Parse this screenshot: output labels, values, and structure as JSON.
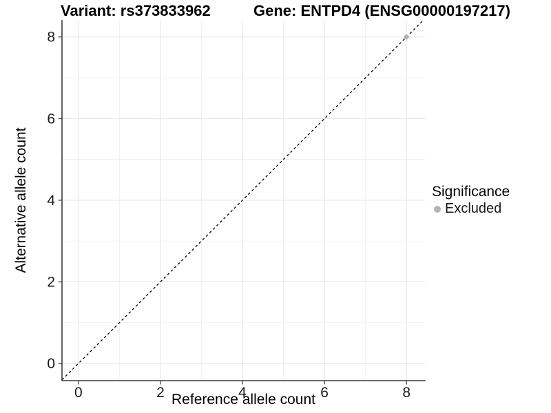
{
  "header": {
    "variant_title": "Variant: rs373833962",
    "gene_title": "Gene: ENTPD4 (ENSG00000197217)"
  },
  "legend": {
    "title": "Significance",
    "items": [
      {
        "label": "Excluded",
        "color": "#b3b3b3"
      }
    ]
  },
  "colors": {
    "grid_major": "#e3e3e3",
    "grid_minor": "#efefef",
    "axis_line": "#3c3c3c",
    "tick_mark": "#333333",
    "tick_label": "#1a1a1a",
    "identity_line": "#000000",
    "point_excluded": "#b3b3b3",
    "background": "#ffffff"
  },
  "chart_data": {
    "type": "scatter",
    "title": "Variant: rs373833962  |  Gene: ENTPD4 (ENSG00000197217)",
    "xlabel": "Reference allele count",
    "ylabel": "Alternative allele count",
    "xlim": [
      -0.4,
      8.45
    ],
    "ylim": [
      -0.42,
      8.4
    ],
    "x_ticks": [
      0,
      2,
      4,
      6,
      8
    ],
    "y_ticks": [
      0,
      2,
      4,
      6,
      8
    ],
    "x_minor_breaks": [
      1,
      3,
      5,
      7
    ],
    "y_minor_breaks": [
      1,
      3,
      5,
      7
    ],
    "grid": true,
    "legend_position": "right",
    "legend_title": "Significance",
    "identity_line": {
      "style": "dashed",
      "slope": 1,
      "intercept": 0,
      "from": -0.4,
      "to": 8.4
    },
    "series": [
      {
        "name": "Excluded",
        "color": "#b3b3b3",
        "points": [
          [
            8,
            8
          ]
        ]
      }
    ]
  }
}
